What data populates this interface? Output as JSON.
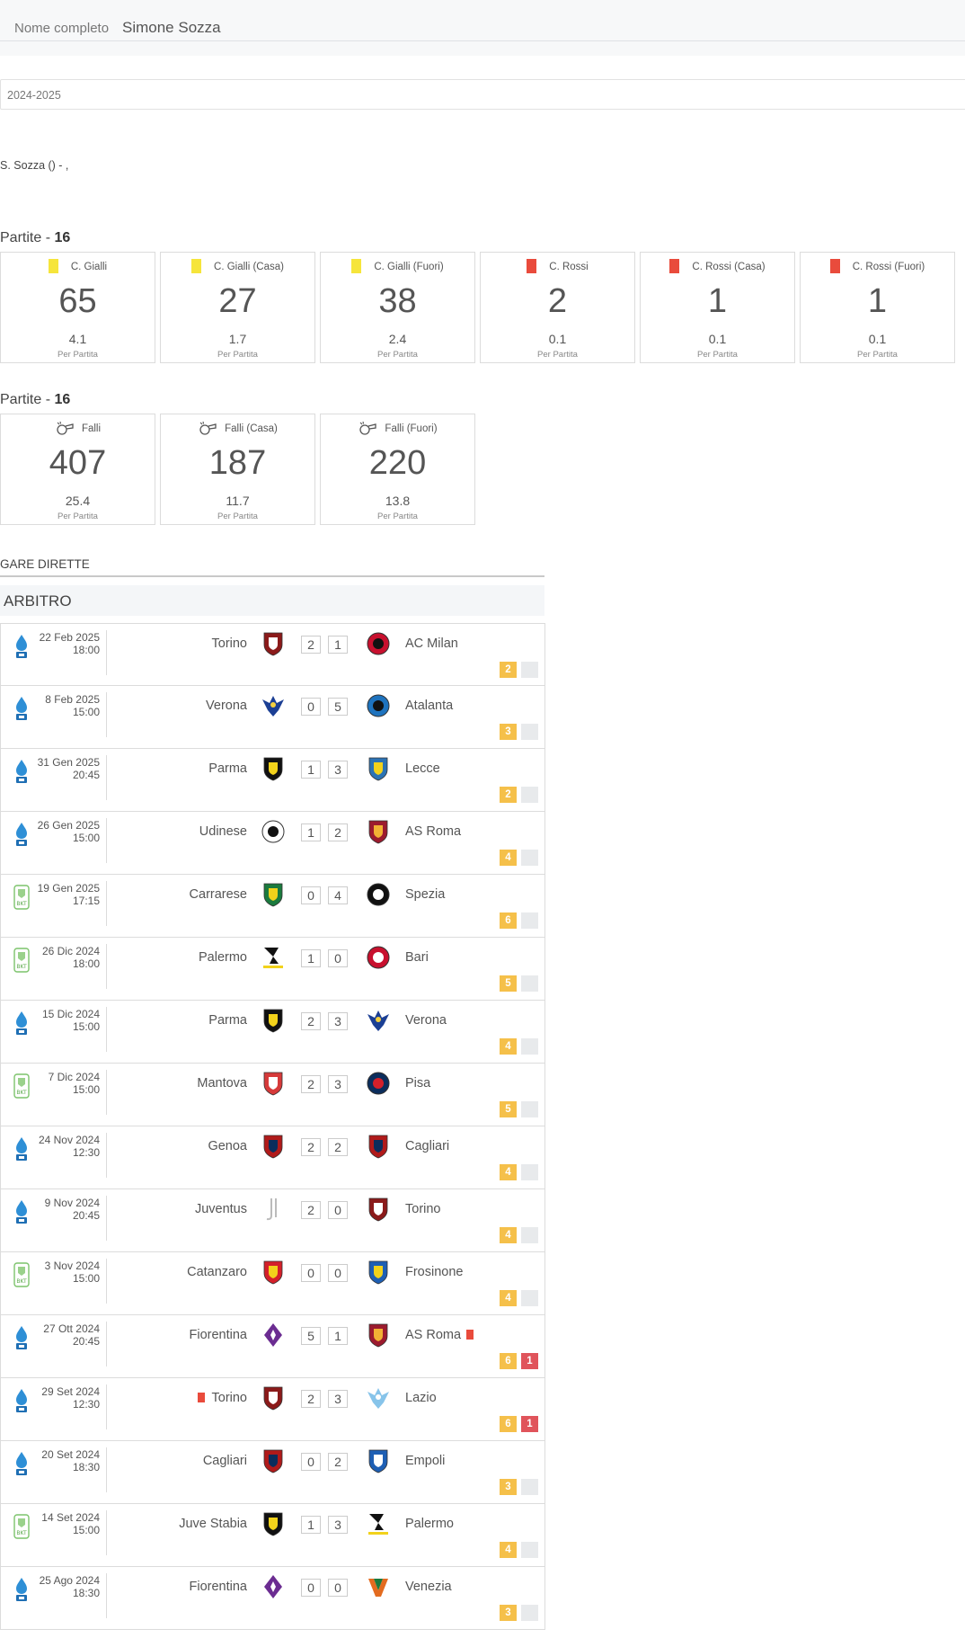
{
  "header": {
    "label": "Nome completo",
    "value": "Simone Sozza"
  },
  "season": "2024-2025",
  "subtitle": "S. Sozza () - ,",
  "cards_section": {
    "prefix": "Partite - ",
    "count": "16",
    "items": [
      {
        "label": "C. Gialli",
        "color": "#f6e53b",
        "total": "65",
        "avg": "4.1",
        "per": "Per Partita"
      },
      {
        "label": "C. Gialli (Casa)",
        "color": "#f6e53b",
        "total": "27",
        "avg": "1.7",
        "per": "Per Partita"
      },
      {
        "label": "C. Gialli (Fuori)",
        "color": "#f6e53b",
        "total": "38",
        "avg": "2.4",
        "per": "Per Partita"
      },
      {
        "label": "C. Rossi",
        "color": "#e94b3c",
        "total": "2",
        "avg": "0.1",
        "per": "Per Partita"
      },
      {
        "label": "C. Rossi (Casa)",
        "color": "#e94b3c",
        "total": "1",
        "avg": "0.1",
        "per": "Per Partita"
      },
      {
        "label": "C. Rossi (Fuori)",
        "color": "#e94b3c",
        "total": "1",
        "avg": "0.1",
        "per": "Per Partita"
      }
    ]
  },
  "fouls_section": {
    "prefix": "Partite - ",
    "count": "16",
    "items": [
      {
        "label": "Falli",
        "icon": "whistle-icon",
        "total": "407",
        "avg": "25.4",
        "per": "Per Partita"
      },
      {
        "label": "Falli (Casa)",
        "icon": "whistle-icon",
        "total": "187",
        "avg": "11.7",
        "per": "Per Partita"
      },
      {
        "label": "Falli (Fuori)",
        "icon": "whistle-icon",
        "total": "220",
        "avg": "13.8",
        "per": "Per Partita"
      }
    ]
  },
  "gare_title": "GARE DIRETTE",
  "role_title": "ARBITRO",
  "matches": [
    {
      "comp": "serie-a",
      "date": "22 Feb 2025",
      "time": "18:00",
      "home": "Torino",
      "home_crest": "torino",
      "hg": "2",
      "ag": "1",
      "away": "AC Milan",
      "away_crest": "milan",
      "yellow": "2",
      "red": "",
      "home_red": false,
      "away_red": false
    },
    {
      "comp": "serie-a",
      "date": "8 Feb 2025",
      "time": "15:00",
      "home": "Verona",
      "home_crest": "verona",
      "hg": "0",
      "ag": "5",
      "away": "Atalanta",
      "away_crest": "atalanta",
      "yellow": "3",
      "red": "",
      "home_red": false,
      "away_red": false
    },
    {
      "comp": "serie-a",
      "date": "31 Gen 2025",
      "time": "20:45",
      "home": "Parma",
      "home_crest": "parma",
      "hg": "1",
      "ag": "3",
      "away": "Lecce",
      "away_crest": "lecce",
      "yellow": "2",
      "red": "",
      "home_red": false,
      "away_red": false
    },
    {
      "comp": "serie-a",
      "date": "26 Gen 2025",
      "time": "15:00",
      "home": "Udinese",
      "home_crest": "udinese",
      "hg": "1",
      "ag": "2",
      "away": "AS Roma",
      "away_crest": "roma",
      "yellow": "4",
      "red": "",
      "home_red": false,
      "away_red": false
    },
    {
      "comp": "serie-b",
      "date": "19 Gen 2025",
      "time": "17:15",
      "home": "Carrarese",
      "home_crest": "carrarese",
      "hg": "0",
      "ag": "4",
      "away": "Spezia",
      "away_crest": "spezia",
      "yellow": "6",
      "red": "",
      "home_red": false,
      "away_red": false
    },
    {
      "comp": "serie-b",
      "date": "26 Dic 2024",
      "time": "18:00",
      "home": "Palermo",
      "home_crest": "palermo",
      "hg": "1",
      "ag": "0",
      "away": "Bari",
      "away_crest": "bari",
      "yellow": "5",
      "red": "",
      "home_red": false,
      "away_red": false
    },
    {
      "comp": "serie-a",
      "date": "15 Dic 2024",
      "time": "15:00",
      "home": "Parma",
      "home_crest": "parma",
      "hg": "2",
      "ag": "3",
      "away": "Verona",
      "away_crest": "verona",
      "yellow": "4",
      "red": "",
      "home_red": false,
      "away_red": false
    },
    {
      "comp": "serie-b",
      "date": "7 Dic 2024",
      "time": "15:00",
      "home": "Mantova",
      "home_crest": "mantova",
      "hg": "2",
      "ag": "3",
      "away": "Pisa",
      "away_crest": "pisa",
      "yellow": "5",
      "red": "",
      "home_red": false,
      "away_red": false
    },
    {
      "comp": "serie-a",
      "date": "24 Nov 2024",
      "time": "12:30",
      "home": "Genoa",
      "home_crest": "genoa",
      "hg": "2",
      "ag": "2",
      "away": "Cagliari",
      "away_crest": "cagliari",
      "yellow": "4",
      "red": "",
      "home_red": false,
      "away_red": false
    },
    {
      "comp": "serie-a",
      "date": "9 Nov 2024",
      "time": "20:45",
      "home": "Juventus",
      "home_crest": "juventus",
      "hg": "2",
      "ag": "0",
      "away": "Torino",
      "away_crest": "torino",
      "yellow": "4",
      "red": "",
      "home_red": false,
      "away_red": false
    },
    {
      "comp": "serie-b",
      "date": "3 Nov 2024",
      "time": "15:00",
      "home": "Catanzaro",
      "home_crest": "catanzaro",
      "hg": "0",
      "ag": "0",
      "away": "Frosinone",
      "away_crest": "frosinone",
      "yellow": "4",
      "red": "",
      "home_red": false,
      "away_red": false
    },
    {
      "comp": "serie-a",
      "date": "27 Ott 2024",
      "time": "20:45",
      "home": "Fiorentina",
      "home_crest": "fiorentina",
      "hg": "5",
      "ag": "1",
      "away": "AS Roma",
      "away_crest": "roma",
      "yellow": "6",
      "red": "1",
      "home_red": false,
      "away_red": true
    },
    {
      "comp": "serie-a",
      "date": "29 Set 2024",
      "time": "12:30",
      "home": "Torino",
      "home_crest": "torino",
      "hg": "2",
      "ag": "3",
      "away": "Lazio",
      "away_crest": "lazio",
      "yellow": "6",
      "red": "1",
      "home_red": true,
      "away_red": false
    },
    {
      "comp": "serie-a",
      "date": "20 Set 2024",
      "time": "18:30",
      "home": "Cagliari",
      "home_crest": "cagliari",
      "hg": "0",
      "ag": "2",
      "away": "Empoli",
      "away_crest": "empoli",
      "yellow": "3",
      "red": "",
      "home_red": false,
      "away_red": false
    },
    {
      "comp": "serie-b",
      "date": "14 Set 2024",
      "time": "15:00",
      "home": "Juve Stabia",
      "home_crest": "juvestabia",
      "hg": "1",
      "ag": "3",
      "away": "Palermo",
      "away_crest": "palermo",
      "yellow": "4",
      "red": "",
      "home_red": false,
      "away_red": false
    },
    {
      "comp": "serie-a",
      "date": "25 Ago 2024",
      "time": "18:30",
      "home": "Fiorentina",
      "home_crest": "fiorentina",
      "hg": "0",
      "ag": "0",
      "away": "Venezia",
      "away_crest": "venezia",
      "yellow": "3",
      "red": "",
      "home_red": false,
      "away_red": false
    }
  ]
}
